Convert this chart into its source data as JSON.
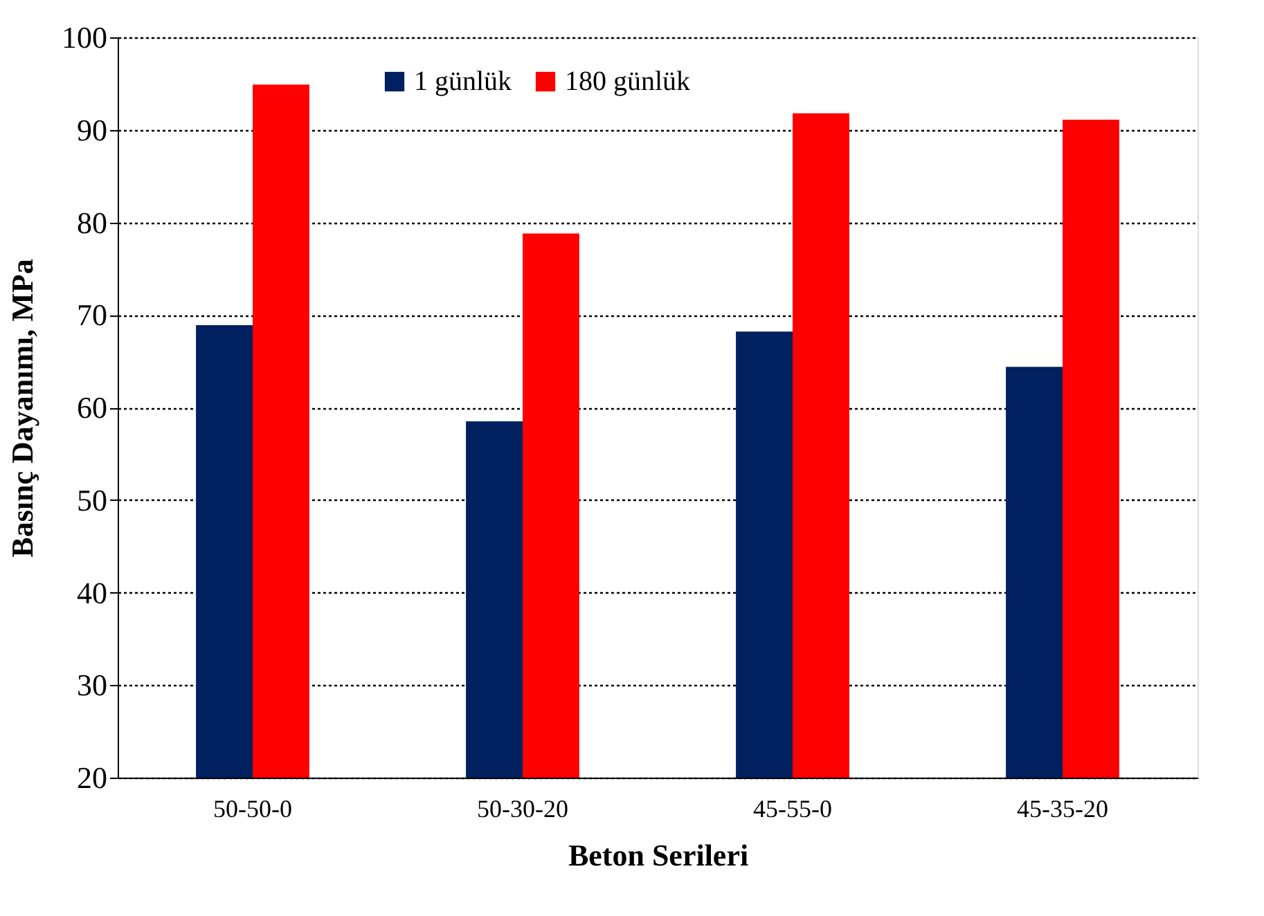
{
  "chart_data": {
    "type": "bar",
    "xlabel": "Beton Serileri",
    "ylabel": "Basınç Dayanımı, MPa",
    "categories": [
      "50-50-0",
      "50-30-20",
      "45-55-0",
      "45-35-20"
    ],
    "series": [
      {
        "name": "1 günlük",
        "color": "#002060",
        "values": [
          68.9,
          58.5,
          68.2,
          64.4
        ]
      },
      {
        "name": "180 günlük",
        "color": "#ff0000",
        "values": [
          94.9,
          78.8,
          91.8,
          91.1
        ]
      }
    ],
    "ylim": [
      20,
      100
    ],
    "yticks": [
      20,
      30,
      40,
      50,
      60,
      70,
      80,
      90,
      100
    ],
    "grid": "y",
    "legend": "top"
  }
}
